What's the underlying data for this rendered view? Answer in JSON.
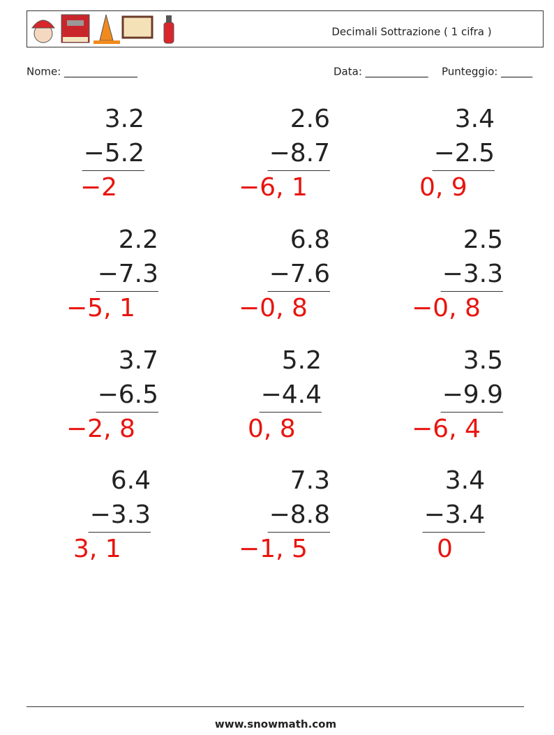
{
  "header": {
    "title": "Decimali Sottrazione ( 1 cifra )"
  },
  "fields": {
    "name": "Nome: ______________",
    "date": "Data: ____________",
    "score": "Punteggio: ______"
  },
  "problems": [
    {
      "top": "3.2",
      "bottom": "−5.2",
      "answer": "−2"
    },
    {
      "top": "2.6",
      "bottom": "−8.7",
      "answer": "−6, 1"
    },
    {
      "top": "3.4",
      "bottom": "−2.5",
      "answer": "0, 9"
    },
    {
      "top": "2.2",
      "bottom": "−7.3",
      "answer": "−5, 1"
    },
    {
      "top": "6.8",
      "bottom": "−7.6",
      "answer": "−0, 8"
    },
    {
      "top": "2.5",
      "bottom": "−3.3",
      "answer": "−0, 8"
    },
    {
      "top": "3.7",
      "bottom": "−6.5",
      "answer": "−2, 8"
    },
    {
      "top": "5.2",
      "bottom": "−4.4",
      "answer": "0, 8"
    },
    {
      "top": "3.5",
      "bottom": "−9.9",
      "answer": "−6, 4"
    },
    {
      "top": "6.4",
      "bottom": "−3.3",
      "answer": "3, 1"
    },
    {
      "top": "7.3",
      "bottom": "−8.8",
      "answer": "−1, 5"
    },
    {
      "top": "3.4",
      "bottom": "−3.4",
      "answer": "0"
    }
  ],
  "footer": {
    "site": "www.snowmath.com"
  }
}
